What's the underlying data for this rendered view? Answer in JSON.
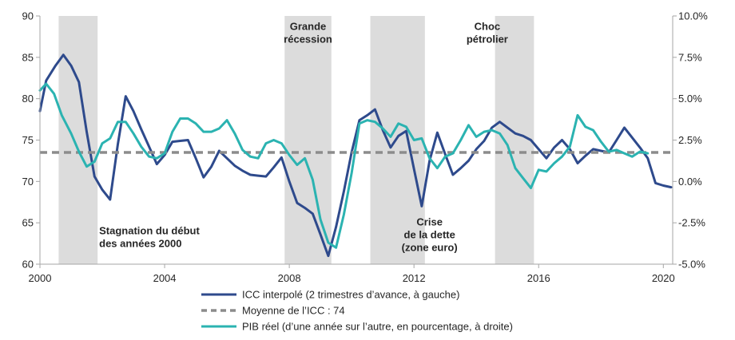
{
  "chart_data": {
    "type": "line",
    "title": "",
    "xlabel": "",
    "ylabel_left": "",
    "ylabel_right": "",
    "x_ticks": [
      "2000",
      "2004",
      "2008",
      "2012",
      "2016",
      "2020"
    ],
    "x_range": [
      2000,
      2020.3
    ],
    "y_left_ticks": [
      "60",
      "65",
      "70",
      "75",
      "80",
      "85",
      "90"
    ],
    "y_left_range": [
      60,
      90
    ],
    "y_right_ticks": [
      "-5.0%",
      "-2.5%",
      "0.0%",
      "2.5%",
      "5.0%",
      "7.5%",
      "10.0%"
    ],
    "y_right_range": [
      -5,
      10
    ],
    "grid": false,
    "legend_position": "bottom",
    "recessions": [
      {
        "start": 2000.6,
        "end": 2001.85
      },
      {
        "start": 2007.85,
        "end": 2009.35
      },
      {
        "start": 2010.6,
        "end": 2012.35
      },
      {
        "start": 2014.6,
        "end": 2015.85
      }
    ],
    "annotations": [
      {
        "lines": [
          "Grande",
          "récession"
        ],
        "x": 2008.6,
        "y": 88.3
      },
      {
        "lines": [
          "Choc",
          "pétrolier"
        ],
        "x": 2014.35,
        "y": 88.3
      },
      {
        "lines": [
          "Stagnation du début",
          "des années 2000"
        ],
        "x": 2001.9,
        "y": 63.6
      },
      {
        "lines": [
          "Crise",
          "de la dette",
          "(zone euro)"
        ],
        "x": 2012.5,
        "y": 64.7
      }
    ],
    "series": [
      {
        "name": "ICC interpolé (2 trimestres d’avance, à gauche)",
        "axis": "left",
        "color": "#2e4a8c",
        "style": "solid",
        "x": [
          2000.0,
          2000.2,
          2000.5,
          2000.75,
          2001.0,
          2001.25,
          2001.5,
          2001.75,
          2002.0,
          2002.25,
          2002.5,
          2002.75,
          2003.0,
          2003.25,
          2003.5,
          2003.75,
          2004.0,
          2004.25,
          2004.5,
          2004.75,
          2005.0,
          2005.25,
          2005.5,
          2005.75,
          2006.0,
          2006.25,
          2006.5,
          2006.75,
          2007.0,
          2007.25,
          2007.5,
          2007.75,
          2008.0,
          2008.25,
          2008.5,
          2008.75,
          2009.0,
          2009.25,
          2009.5,
          2009.75,
          2010.0,
          2010.25,
          2010.5,
          2010.75,
          2011.0,
          2011.25,
          2011.5,
          2011.75,
          2012.0,
          2012.25,
          2012.5,
          2012.75,
          2013.0,
          2013.25,
          2013.5,
          2013.75,
          2014.0,
          2014.25,
          2014.5,
          2014.75,
          2015.0,
          2015.25,
          2015.5,
          2015.75,
          2016.0,
          2016.25,
          2016.5,
          2016.75,
          2017.0,
          2017.25,
          2017.5,
          2017.75,
          2018.0,
          2018.25,
          2018.5,
          2018.75,
          2019.0,
          2019.25,
          2019.5,
          2019.75,
          2020.0,
          2020.25
        ],
        "values": [
          78.5,
          82.2,
          84.0,
          85.3,
          84.0,
          82.0,
          76.0,
          70.6,
          69.0,
          67.8,
          74.5,
          80.3,
          78.5,
          76.3,
          74.2,
          72.1,
          73.2,
          74.8,
          74.9,
          75.0,
          72.8,
          70.5,
          71.8,
          73.7,
          72.8,
          71.9,
          71.3,
          70.8,
          70.7,
          70.6,
          71.7,
          72.9,
          70.0,
          67.4,
          66.8,
          66.1,
          63.6,
          61.0,
          64.5,
          68.8,
          73.5,
          77.4,
          78.0,
          78.7,
          76.2,
          74.1,
          75.5,
          76.1,
          71.5,
          67.0,
          72.5,
          75.9,
          73.3,
          70.8,
          71.6,
          72.5,
          73.9,
          74.9,
          76.5,
          77.2,
          76.5,
          75.8,
          75.5,
          75.0,
          73.9,
          72.8,
          74.1,
          75.0,
          73.9,
          72.2,
          73.1,
          73.9,
          73.7,
          73.5,
          75.0,
          76.5,
          75.3,
          74.1,
          72.8,
          69.8,
          69.5,
          69.3
        ]
      },
      {
        "name": "Moyenne de l’ICC : 74",
        "axis": "left",
        "color": "#8c8c8c",
        "style": "dashed",
        "x": [
          2000.0,
          2020.3
        ],
        "values": [
          73.5,
          73.5
        ]
      },
      {
        "name": "PIB réel (d’une année sur l’autre, en pourcentage, à droite)",
        "axis": "right",
        "color": "#2bb3b1",
        "style": "solid",
        "x": [
          2000.0,
          2000.2,
          2000.45,
          2000.7,
          2001.0,
          2001.25,
          2001.5,
          2001.75,
          2002.0,
          2002.25,
          2002.5,
          2002.75,
          2003.0,
          2003.25,
          2003.5,
          2003.75,
          2004.0,
          2004.25,
          2004.5,
          2004.75,
          2005.0,
          2005.25,
          2005.5,
          2005.75,
          2006.0,
          2006.25,
          2006.5,
          2006.75,
          2007.0,
          2007.25,
          2007.5,
          2007.75,
          2008.0,
          2008.25,
          2008.5,
          2008.75,
          2009.0,
          2009.25,
          2009.5,
          2009.75,
          2010.0,
          2010.25,
          2010.5,
          2010.75,
          2011.0,
          2011.25,
          2011.5,
          2011.75,
          2012.0,
          2012.25,
          2012.5,
          2012.75,
          2013.0,
          2013.25,
          2013.5,
          2013.75,
          2014.0,
          2014.25,
          2014.5,
          2014.75,
          2015.0,
          2015.25,
          2015.5,
          2015.75,
          2016.0,
          2016.25,
          2016.5,
          2016.75,
          2017.0,
          2017.25,
          2017.5,
          2017.75,
          2018.0,
          2018.25,
          2018.5,
          2018.75,
          2019.0,
          2019.25,
          2019.5
        ],
        "values": [
          5.5,
          5.9,
          5.3,
          4.0,
          2.9,
          1.8,
          0.9,
          1.2,
          2.3,
          2.6,
          3.6,
          3.6,
          2.9,
          2.1,
          1.5,
          1.4,
          1.7,
          3.0,
          3.8,
          3.8,
          3.5,
          3.0,
          3.0,
          3.2,
          3.7,
          2.9,
          1.9,
          1.5,
          1.4,
          2.3,
          2.5,
          2.3,
          1.6,
          1.0,
          1.4,
          0.1,
          -2.3,
          -3.7,
          -4.0,
          -2.0,
          0.5,
          3.5,
          3.7,
          3.6,
          3.2,
          2.7,
          3.5,
          3.3,
          2.5,
          2.6,
          1.4,
          0.8,
          1.5,
          1.7,
          2.5,
          3.4,
          2.7,
          3.0,
          3.1,
          2.9,
          2.2,
          0.8,
          0.2,
          -0.4,
          0.7,
          0.6,
          1.1,
          1.5,
          2.1,
          4.0,
          3.3,
          3.1,
          2.4,
          1.8,
          1.9,
          1.7,
          1.5,
          1.8,
          1.7
        ]
      }
    ]
  }
}
